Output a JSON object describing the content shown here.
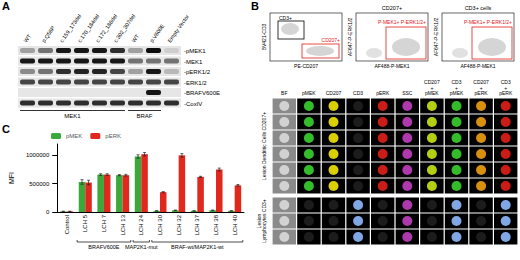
{
  "panel_a": {
    "label": "A",
    "lanes": [
      "WT",
      "p.Q56P",
      "c.159_173del",
      "c.170_184del",
      "c.172_186del",
      "c.302_307del",
      "WT",
      "p.V600E",
      "Empty Vector"
    ],
    "rows": [
      {
        "label": "-pMEK1",
        "bands": [
          0.3,
          0.5,
          0.9,
          0.9,
          0.9,
          0.8,
          0.3,
          0.95,
          0.1
        ]
      },
      {
        "label": "-MEK1",
        "bands": [
          0.9,
          0.9,
          0.9,
          0.9,
          0.9,
          0.9,
          0.5,
          0.5,
          0.5
        ]
      },
      {
        "label": "-pERK1/2",
        "bands": [
          0.4,
          0.5,
          0.8,
          0.85,
          0.85,
          0.7,
          0.3,
          0.9,
          0.2
        ]
      },
      {
        "label": "-ERK1/2",
        "bands": [
          0.7,
          0.7,
          0.7,
          0.7,
          0.7,
          0.7,
          0.7,
          0.7,
          0.7
        ]
      },
      {
        "label": "-BRAFV600E",
        "bands": [
          0,
          0,
          0,
          0,
          0,
          0,
          0,
          0.9,
          0
        ]
      },
      {
        "label": "-CoxIV",
        "bands": [
          0.8,
          0.8,
          0.8,
          0.8,
          0.8,
          0.8,
          0.8,
          0.8,
          0.8
        ]
      }
    ],
    "groups": [
      {
        "label": "MEK1",
        "from": 0,
        "to": 5
      },
      {
        "label": "BRAF",
        "from": 6,
        "to": 7
      }
    ]
  },
  "panel_b": {
    "label": "B",
    "plots": [
      {
        "ylabel": "BV421-CD3",
        "xlabel": "PE-CD207",
        "gates": [
          {
            "label": "CD3+",
            "color": "#000000"
          },
          {
            "label": "CD207+",
            "color": "#e0201b"
          }
        ]
      },
      {
        "title": "CD207+",
        "ylabel": "AF647-P-ERK1/2",
        "xlabel": "AF488-P-MEK1",
        "gates": [
          {
            "label": "P-MEK1+ P-ERK1/2+",
            "color": "#e0201b"
          }
        ]
      },
      {
        "title": "CD3+ cells",
        "ylabel": "AF647-P-ERK1/2",
        "xlabel": "AF488-P-MEK1",
        "gates": [
          {
            "label": "P-MEK1+ P-ERK1/2+",
            "color": "#e0201b"
          }
        ]
      }
    ],
    "columns": [
      {
        "label": "BF",
        "background": "#8a8a8a"
      },
      {
        "label": "pMEK",
        "background": "#000000"
      },
      {
        "label": "CD207",
        "background": "#000000"
      },
      {
        "label": "CD3",
        "background": "#000000"
      },
      {
        "label": "pERK",
        "background": "#000000"
      },
      {
        "label": "SSC",
        "background": "#000000"
      },
      {
        "label": "CD207 + pMEK",
        "background": "#000000"
      },
      {
        "label": "CD3 + pMEK",
        "background": "#000000"
      },
      {
        "label": "CD207 + pERK",
        "background": "#000000"
      },
      {
        "label": "CD3 + pERK",
        "background": "#000000"
      }
    ],
    "populations": [
      {
        "label": "Lesion Dendritic Cells CD207+",
        "rows": 6,
        "colors": [
          "#d9d9d9",
          "#39d12f",
          "#f2e600",
          null,
          "#e0201b",
          "#c040c0",
          "#c8e614",
          "#39d12f",
          "#f0a010",
          "#e0201b"
        ]
      },
      {
        "label": "Lesion Lymphocytes CD3+",
        "rows": 3,
        "colors": [
          "#d9d9d9",
          null,
          null,
          "#8fb8ff",
          null,
          "#c040c0",
          null,
          "#8fb8ff",
          null,
          "#8fb8ff"
        ]
      }
    ]
  },
  "panel_c": {
    "label": "C"
  },
  "chart_data": {
    "type": "bar",
    "categories": [
      "Control",
      "LCH 5",
      "LCH 7",
      "LCH 13",
      "LCH 24",
      "LCH 30",
      "LCH 32",
      "LCH 37",
      "LCH 38",
      "LCH 40"
    ],
    "series": [
      {
        "name": "pMEK",
        "color": "#3aa83a",
        "values": [
          10000,
          530000,
          660000,
          650000,
          980000,
          20000,
          30000,
          20000,
          30000,
          20000
        ],
        "errors": [
          5000,
          40000,
          15000,
          10000,
          30000,
          3000,
          5000,
          3000,
          5000,
          3000
        ]
      },
      {
        "name": "pERK",
        "color": "#e0281f",
        "values": [
          10000,
          520000,
          660000,
          650000,
          1020000,
          350000,
          1000000,
          620000,
          750000,
          470000
        ],
        "errors": [
          5000,
          40000,
          15000,
          15000,
          30000,
          10000,
          30000,
          10000,
          25000,
          15000
        ]
      }
    ],
    "ylabel": "MFI",
    "ylim": [
      0,
      1200000
    ],
    "yticks": [
      0,
      500000,
      1000000
    ],
    "grid": false,
    "legend": "top-left",
    "annotations": [
      {
        "text": "BRAFV600E",
        "from": "LCH 5",
        "to": "LCH 13"
      },
      {
        "text": "MAP2K1-mut",
        "from": "LCH 24",
        "to": "LCH 24"
      },
      {
        "text": "BRAF-wt/MAP2K1-wt",
        "from": "LCH 30",
        "to": "LCH 40"
      }
    ]
  }
}
